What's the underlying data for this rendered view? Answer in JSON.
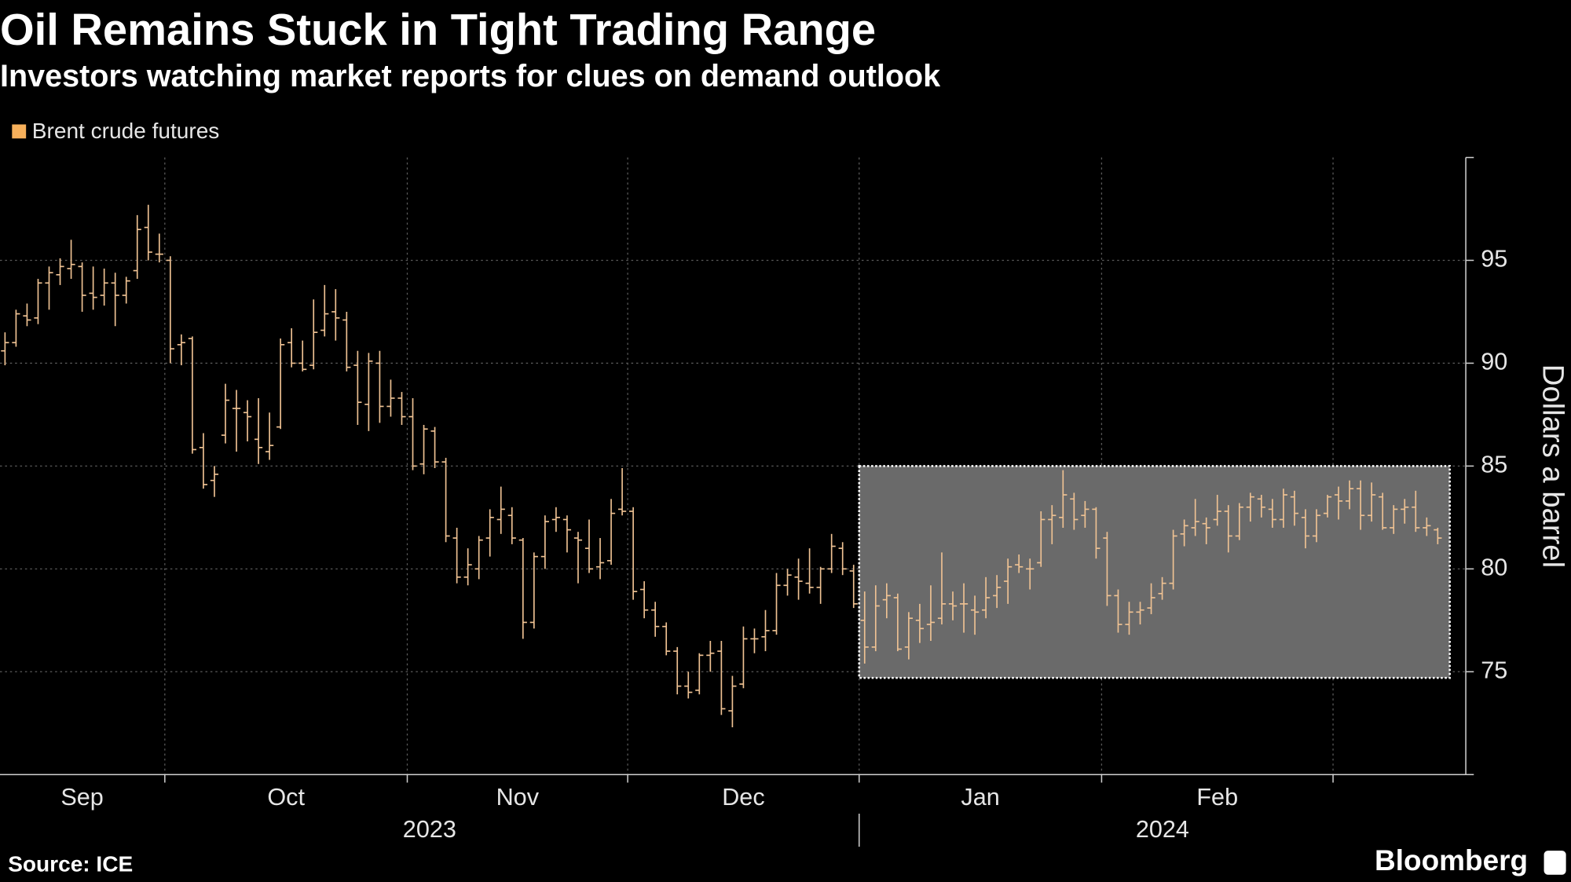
{
  "chart_data": {
    "type": "ohlc",
    "title": "Oil Remains Stuck in Tight Trading Range",
    "subtitle": "Investors watching market reports for clues on demand outlook",
    "legend": {
      "label": "Brent crude futures",
      "color": "#f7b05b"
    },
    "bar_color": "#efc293",
    "y_label": "Dollars a barrel",
    "source": "Source: ICE",
    "brand": "Bloomberg",
    "ylim": [
      70,
      100
    ],
    "yticks": [
      75,
      80,
      85,
      90,
      95
    ],
    "grid": true,
    "highlight": {
      "ylim": [
        74.7,
        85
      ]
    },
    "years": [
      {
        "label": "2023",
        "months": [
          {
            "name": "Sep",
            "open": [
              90.6,
              91.0,
              92.3,
              92.2,
              93.9,
              94.3,
              94.6,
              94.7,
              93.4,
              93.3,
              93.9,
              93.3,
              94.5,
              96.6,
              95.3
            ],
            "high": [
              91.5,
              92.6,
              92.9,
              94.1,
              94.7,
              95.1,
              96.0,
              94.9,
              94.7,
              94.6,
              94.4,
              94.2,
              97.2,
              97.7,
              96.3
            ],
            "low": [
              89.9,
              90.8,
              91.8,
              91.9,
              92.6,
              93.8,
              94.1,
              92.5,
              92.6,
              92.8,
              91.8,
              92.9,
              94.1,
              95.0,
              94.9
            ],
            "close": [
              91.0,
              92.4,
              92.1,
              93.9,
              94.4,
              94.7,
              94.8,
              93.3,
              93.2,
              93.9,
              93.3,
              94.0,
              96.5,
              95.4,
              95.3
            ]
          },
          {
            "name": "Oct",
            "open": [
              95.0,
              90.9,
              91.2,
              85.9,
              84.3,
              86.5,
              87.8,
              87.6,
              86.3,
              85.7,
              86.9,
              91.0,
              90.0,
              89.9,
              91.6,
              92.5,
              92.1,
              89.9,
              88.0,
              90.0,
              87.9,
              88.3
            ],
            "high": [
              95.2,
              91.4,
              91.3,
              86.6,
              85.0,
              89.0,
              88.7,
              88.2,
              88.3,
              87.6,
              91.2,
              91.7,
              91.1,
              93.1,
              93.8,
              93.6,
              92.5,
              90.6,
              90.5,
              90.6,
              89.2,
              88.6
            ],
            "low": [
              90.0,
              89.9,
              85.6,
              83.9,
              83.5,
              86.1,
              85.7,
              86.2,
              85.1,
              85.3,
              86.8,
              89.8,
              89.6,
              89.7,
              91.3,
              91.1,
              89.6,
              87.0,
              86.7,
              87.1,
              87.4,
              87.0
            ],
            "close": [
              90.7,
              91.0,
              85.8,
              84.1,
              84.6,
              88.2,
              87.8,
              87.4,
              85.9,
              86.0,
              90.9,
              90.0,
              89.7,
              91.5,
              92.4,
              92.2,
              89.8,
              88.1,
              90.1,
              87.9,
              88.3,
              87.4
            ]
          },
          {
            "name": "Nov",
            "open": [
              87.4,
              85.1,
              86.7,
              85.2,
              81.5,
              79.6,
              80.0,
              81.5,
              82.4,
              82.6,
              81.4,
              77.4,
              80.6,
              82.4,
              82.4,
              81.5,
              81.0,
              80.1,
              80.4,
              82.9
            ],
            "high": [
              88.3,
              87.0,
              86.9,
              85.4,
              82.0,
              81.0,
              81.6,
              82.9,
              84.0,
              83.0,
              81.5,
              80.8,
              82.6,
              83.0,
              82.6,
              81.8,
              82.4,
              81.5,
              83.4,
              84.9
            ],
            "low": [
              84.8,
              84.6,
              84.9,
              81.3,
              79.3,
              79.2,
              79.5,
              80.6,
              81.7,
              81.2,
              76.6,
              77.1,
              80.0,
              81.8,
              80.8,
              79.3,
              79.8,
              79.5,
              80.2,
              82.6
            ],
            "close": [
              85.0,
              86.8,
              85.2,
              81.6,
              79.6,
              80.2,
              81.4,
              82.5,
              82.9,
              81.5,
              77.4,
              80.6,
              82.3,
              82.5,
              81.9,
              81.4,
              80.0,
              80.3,
              82.7,
              82.8
            ]
          },
          {
            "name": "Dec",
            "open": [
              82.8,
              79.0,
              78.0,
              77.2,
              76.0,
              74.3,
              74.1,
              75.8,
              76.0,
              73.1,
              74.4,
              76.6,
              76.7,
              77.0,
              79.2,
              79.6,
              79.3,
              79.1,
              80.0,
              81.0,
              79.9
            ],
            "high": [
              83.0,
              79.4,
              78.4,
              77.4,
              76.2,
              75.0,
              75.9,
              76.5,
              76.5,
              74.8,
              77.2,
              77.1,
              78.0,
              79.8,
              80.0,
              80.5,
              81.0,
              80.1,
              81.7,
              81.3,
              80.2
            ],
            "low": [
              78.5,
              77.6,
              76.7,
              75.8,
              73.9,
              73.7,
              73.9,
              75.0,
              72.9,
              72.3,
              74.2,
              75.9,
              76.0,
              76.8,
              78.7,
              78.5,
              78.8,
              78.3,
              79.8,
              79.7,
              78.1
            ],
            "close": [
              78.9,
              78.0,
              77.2,
              76.0,
              74.3,
              74.0,
              75.8,
              75.9,
              73.2,
              74.3,
              76.6,
              76.6,
              77.0,
              79.2,
              79.7,
              79.4,
              79.1,
              80.0,
              81.1,
              80.0,
              78.3
            ]
          }
        ]
      },
      {
        "label": "2024",
        "months": [
          {
            "name": "Jan",
            "open": [
              77.5,
              76.2,
              78.5,
              78.6,
              76.2,
              77.5,
              77.3,
              77.6,
              78.3,
              78.3,
              78.0,
              78.0,
              78.7,
              79.4,
              80.2,
              80.0,
              80.3,
              82.4,
              82.5,
              83.4,
              82.6,
              82.9
            ],
            "high": [
              78.9,
              79.2,
              79.3,
              78.8,
              77.9,
              78.3,
              79.2,
              80.8,
              78.9,
              79.3,
              78.7,
              79.6,
              79.7,
              80.5,
              80.7,
              80.5,
              82.8,
              83.1,
              84.8,
              83.7,
              83.3,
              83.0
            ],
            "low": [
              75.4,
              76.0,
              77.6,
              76.0,
              75.6,
              76.4,
              76.5,
              77.3,
              77.5,
              76.9,
              76.8,
              77.6,
              78.1,
              78.3,
              79.8,
              79.0,
              80.1,
              81.2,
              82.0,
              81.9,
              82.0,
              80.5
            ],
            "close": [
              76.2,
              78.2,
              78.7,
              76.1,
              77.6,
              77.1,
              77.4,
              78.3,
              78.2,
              78.3,
              77.9,
              78.6,
              79.1,
              80.1,
              80.1,
              80.0,
              82.4,
              82.6,
              83.6,
              82.4,
              82.9,
              81.0
            ]
          },
          {
            "name": "Feb",
            "open": [
              81.5,
              78.7,
              77.3,
              77.9,
              78.1,
              78.8,
              79.3,
              81.7,
              82.0,
              82.2,
              82.4,
              82.8,
              81.6,
              83.0,
              83.4,
              82.9,
              82.4,
              83.5,
              82.5,
              81.6,
              82.7
            ],
            "high": [
              81.8,
              79.0,
              78.4,
              78.4,
              79.3,
              79.6,
              81.9,
              82.4,
              83.4,
              82.5,
              83.6,
              83.1,
              83.2,
              83.7,
              83.6,
              83.4,
              83.9,
              83.8,
              82.9,
              82.9,
              83.6
            ],
            "low": [
              78.2,
              76.9,
              76.8,
              77.3,
              77.8,
              78.5,
              79.0,
              81.1,
              81.6,
              81.2,
              82.1,
              80.8,
              81.4,
              82.3,
              82.5,
              82.0,
              82.0,
              82.1,
              81.0,
              81.3,
              82.5
            ],
            "close": [
              78.7,
              77.3,
              77.9,
              78.0,
              78.6,
              79.3,
              81.6,
              82.1,
              82.3,
              82.0,
              82.8,
              81.6,
              83.0,
              83.5,
              83.0,
              82.4,
              83.6,
              82.7,
              81.6,
              82.6,
              83.5
            ]
          },
          {
            "name": null,
            "open": [
              83.6,
              83.3,
              83.9,
              82.6,
              83.5,
              82.0,
              82.9,
              83.0,
              82.0,
              81.9
            ],
            "high": [
              84.0,
              84.3,
              84.3,
              84.2,
              83.7,
              83.1,
              83.4,
              83.8,
              82.5,
              82.0
            ],
            "low": [
              82.4,
              82.9,
              81.9,
              82.3,
              81.9,
              81.7,
              82.2,
              81.8,
              81.6,
              81.2
            ],
            "close": [
              83.3,
              83.9,
              82.6,
              83.6,
              82.0,
              82.9,
              83.0,
              82.0,
              82.1,
              81.5
            ]
          }
        ]
      }
    ]
  }
}
